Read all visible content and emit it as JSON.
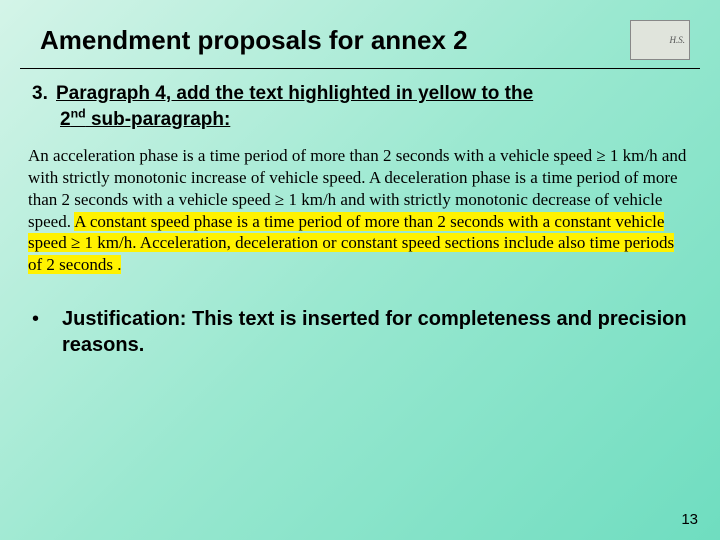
{
  "title": "Amendment proposals for annex 2",
  "logo_text": "H.S.",
  "item3": {
    "number": "3.",
    "line1": "Paragraph 4, add the text highlighted in yellow to the",
    "line2_a": "2",
    "line2_sup": "nd",
    "line2_b": " sub-paragraph:"
  },
  "para_plain": "An acceleration phase is a time period of more than 2 seconds with a vehicle speed ≥ 1 km/h and with strictly monotonic increase of vehicle speed. A deceleration phase is a time period of more than 2 seconds with a vehicle speed ≥ 1 km/h and with strictly monotonic decrease of vehicle speed. ",
  "para_hl": "A constant speed phase is a time period of more than 2 seconds with a constant vehicle speed ≥ 1 km/h. Acceleration, deceleration or constant speed sections include also time periods of 2 seconds .",
  "bullet": "•",
  "justification": "Justification: This text is inserted for completeness and precision reasons.",
  "page_number": "13",
  "colors": {
    "highlight": "#fff200",
    "text": "#000000",
    "bg_start": "#d4f4e8",
    "bg_end": "#6fddc0"
  }
}
